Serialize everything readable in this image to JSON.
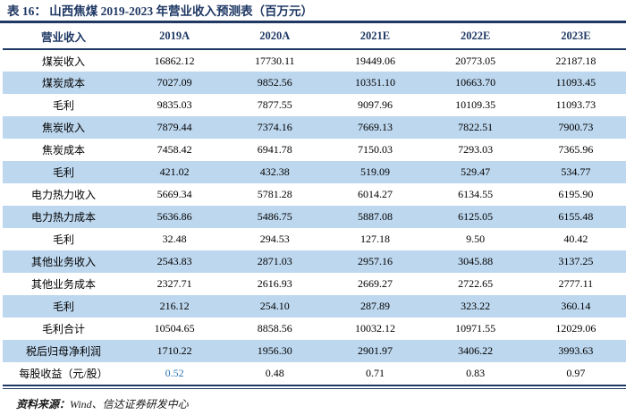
{
  "title": "表 16： 山西焦煤 2019-2023 年营业收入预测表（百万元）",
  "colors": {
    "navy": "#1F3864",
    "stripe": "#BDD7EE",
    "accent_blue": "#2E74B5",
    "ink": "#000000"
  },
  "table": {
    "columns": [
      "营业收入",
      "2019A",
      "2020A",
      "2021E",
      "2022E",
      "2023E"
    ],
    "rows": [
      {
        "label": "煤炭收入",
        "values": [
          "16862.12",
          "17730.11",
          "19449.06",
          "20773.05",
          "22187.18"
        ]
      },
      {
        "label": "煤炭成本",
        "values": [
          "7027.09",
          "9852.56",
          "10351.10",
          "10663.70",
          "11093.45"
        ]
      },
      {
        "label": "毛利",
        "values": [
          "9835.03",
          "7877.55",
          "9097.96",
          "10109.35",
          "11093.73"
        ]
      },
      {
        "label": "焦炭收入",
        "values": [
          "7879.44",
          "7374.16",
          "7669.13",
          "7822.51",
          "7900.73"
        ]
      },
      {
        "label": "焦炭成本",
        "values": [
          "7458.42",
          "6941.78",
          "7150.03",
          "7293.03",
          "7365.96"
        ]
      },
      {
        "label": "毛利",
        "values": [
          "421.02",
          "432.38",
          "519.09",
          "529.47",
          "534.77"
        ]
      },
      {
        "label": "电力热力收入",
        "values": [
          "5669.34",
          "5781.28",
          "6014.27",
          "6134.55",
          "6195.90"
        ]
      },
      {
        "label": "电力热力成本",
        "values": [
          "5636.86",
          "5486.75",
          "5887.08",
          "6125.05",
          "6155.48"
        ]
      },
      {
        "label": "毛利",
        "values": [
          "32.48",
          "294.53",
          "127.18",
          "9.50",
          "40.42"
        ]
      },
      {
        "label": "其他业务收入",
        "values": [
          "2543.83",
          "2871.03",
          "2957.16",
          "3045.88",
          "3137.25"
        ]
      },
      {
        "label": "其他业务成本",
        "values": [
          "2327.71",
          "2616.93",
          "2669.27",
          "2722.65",
          "2777.11"
        ]
      },
      {
        "label": "毛利",
        "values": [
          "216.12",
          "254.10",
          "287.89",
          "323.22",
          "360.14"
        ]
      },
      {
        "label": "毛利合计",
        "values": [
          "10504.65",
          "8858.56",
          "10032.12",
          "10971.55",
          "12029.06"
        ]
      },
      {
        "label": "税后归母净利润",
        "values": [
          "1710.22",
          "1956.30",
          "2901.97",
          "3406.22",
          "3993.63"
        ]
      },
      {
        "label": "每股收益（元/股）",
        "values": [
          "0.52",
          "0.48",
          "0.71",
          "0.83",
          "0.97"
        ]
      }
    ]
  },
  "footer": {
    "source_label": "资料来源：",
    "source_text": "Wind、信达证券研发中心"
  }
}
